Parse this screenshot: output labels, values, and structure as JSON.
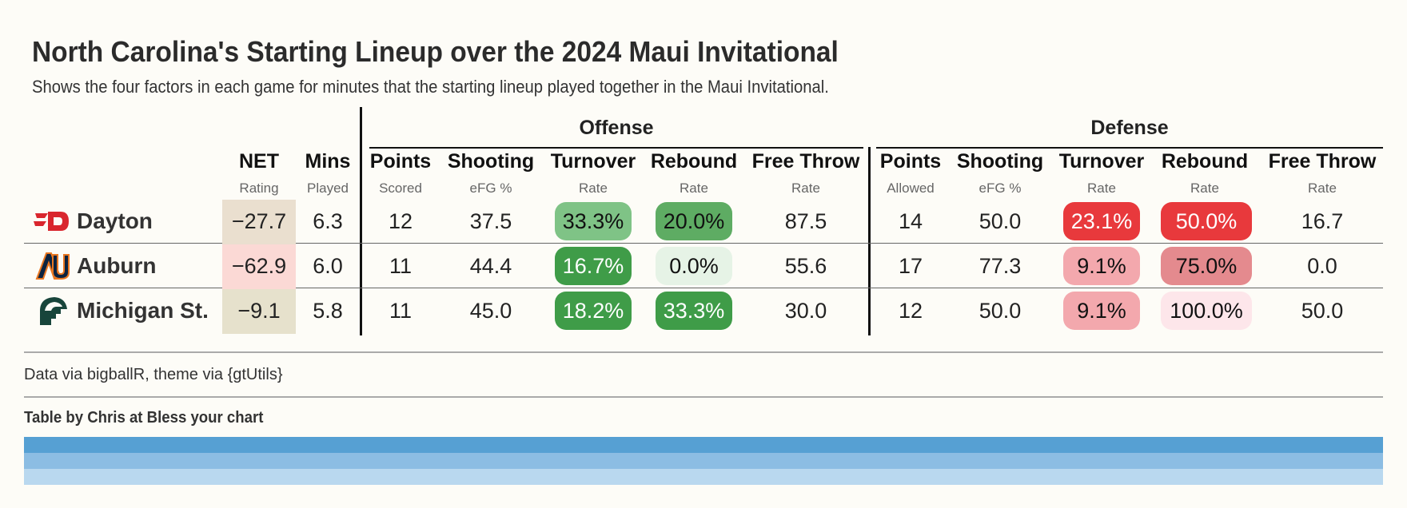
{
  "title": "North Carolina's Starting Lineup over the 2024 Maui Invitational",
  "subtitle": "Shows the four factors in each game for minutes that the starting lineup played together in the Maui Invitational.",
  "groups": {
    "offense": "Offense",
    "defense": "Defense"
  },
  "headers": {
    "net": "NET",
    "net_sub": "Rating",
    "mins": "Mins",
    "mins_sub": "Played",
    "o_points": "Points",
    "o_points_sub": "Scored",
    "o_shoot": "Shooting",
    "o_shoot_sub": "eFG %",
    "o_to": "Turnover",
    "o_to_sub": "Rate",
    "o_reb": "Rebound",
    "o_reb_sub": "Rate",
    "o_ft": "Free Throw",
    "o_ft_sub": "Rate",
    "d_points": "Points",
    "d_points_sub": "Allowed",
    "d_shoot": "Shooting",
    "d_shoot_sub": "eFG %",
    "d_to": "Turnover",
    "d_to_sub": "Rate",
    "d_reb": "Rebound",
    "d_reb_sub": "Rate",
    "d_ft": "Free Throw",
    "d_ft_sub": "Rate"
  },
  "chart_data": {
    "type": "table",
    "rows": [
      {
        "team": "Dayton",
        "logo": "dayton-flyers-logo",
        "net": "−27.7",
        "mins": "6.3",
        "o_points": "12",
        "o_shoot": "37.5",
        "o_to": "33.3%",
        "o_reb": "20.0%",
        "o_ft": "87.5",
        "d_points": "14",
        "d_shoot": "50.0",
        "d_to": "23.1%",
        "d_reb": "50.0%",
        "d_ft": "16.7"
      },
      {
        "team": "Auburn",
        "logo": "auburn-tigers-logo",
        "net": "−62.9",
        "mins": "6.0",
        "o_points": "11",
        "o_shoot": "44.4",
        "o_to": "16.7%",
        "o_reb": "0.0%",
        "o_ft": "55.6",
        "d_points": "17",
        "d_shoot": "77.3",
        "d_to": "9.1%",
        "d_reb": "75.0%",
        "d_ft": "0.0"
      },
      {
        "team": "Michigan St.",
        "logo": "michigan-state-spartans-logo",
        "net": "−9.1",
        "mins": "5.8",
        "o_points": "11",
        "o_shoot": "45.0",
        "o_to": "18.2%",
        "o_reb": "33.3%",
        "o_ft": "30.0",
        "d_points": "12",
        "d_shoot": "50.0",
        "d_to": "9.1%",
        "d_reb": "100.0%",
        "d_ft": "50.0"
      }
    ],
    "colors": {
      "net": [
        "#eadfcf",
        "#fbd9d5",
        "#e6e1cc"
      ],
      "o_to": [
        "#7fc386",
        "#3f9c48",
        "#3f9c48"
      ],
      "o_reb": [
        "#5eac63",
        "#e6f3e6",
        "#3f9c48"
      ],
      "d_to": [
        "#e8393c",
        "#f3a8ad",
        "#f3a8ad"
      ],
      "d_reb": [
        "#e8393c",
        "#e48a8e",
        "#fde6ea"
      ],
      "o_to_text": [
        "#111",
        "#fff",
        "#fff"
      ],
      "o_reb_text": [
        "#111",
        "#111",
        "#fff"
      ],
      "d_to_text": [
        "#fff",
        "#111",
        "#111"
      ],
      "d_reb_text": [
        "#fff",
        "#111",
        "#111"
      ]
    }
  },
  "footer": {
    "source": "Data via bigballR, theme via {gtUtils}",
    "credit": "Table by Chris at Bless your chart"
  },
  "band_colors": [
    "#56a0d3",
    "#8cbde3",
    "#b9d8ef"
  ]
}
